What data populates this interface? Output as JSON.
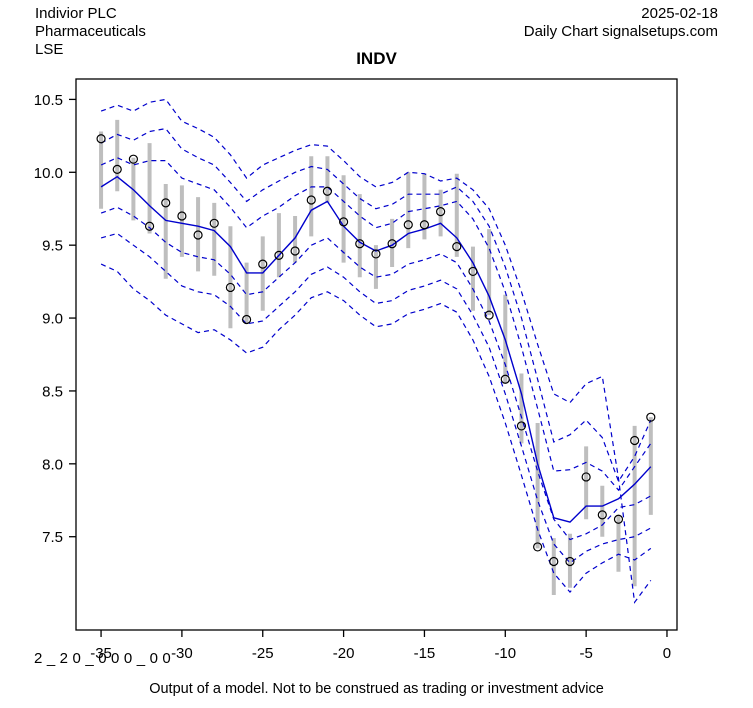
{
  "header": {
    "company": "Indivior PLC",
    "sector": "Pharmaceuticals",
    "exchange": "LSE",
    "date": "2025-02-18",
    "source": "Daily Chart signalsetups.com"
  },
  "title": "INDV",
  "footer": {
    "code": "2_20_000_00",
    "disclaimer": "Output of a model. Not to be construed as trading or investment advice"
  },
  "chart_data": {
    "type": "line",
    "title": "INDV",
    "xlabel": "",
    "ylabel": "",
    "x": [
      -35,
      -34,
      -33,
      -32,
      -31,
      -30,
      -29,
      -28,
      -27,
      -26,
      -25,
      -24,
      -23,
      -22,
      -21,
      -20,
      -19,
      -18,
      -17,
      -16,
      -15,
      -14,
      -13,
      -12,
      -11,
      -10,
      -9,
      -8,
      -7,
      -6,
      -5,
      -4,
      -3,
      -2,
      -1
    ],
    "x_ticks": [
      -35,
      -30,
      -25,
      -20,
      -15,
      -10,
      -5,
      0
    ],
    "y_ticks": [
      7.5,
      8.0,
      8.5,
      9.0,
      9.5,
      10.0,
      10.5
    ],
    "xlim": [
      -36.55,
      0.62
    ],
    "ylim": [
      6.86,
      10.64
    ],
    "grid": false,
    "legend": "none",
    "series": [
      {
        "name": "upper-band-outer",
        "style": "dashed",
        "values": [
          10.42,
          10.46,
          10.42,
          10.48,
          10.5,
          10.35,
          10.3,
          10.24,
          10.12,
          9.96,
          10.05,
          10.1,
          10.15,
          10.19,
          10.18,
          10.08,
          9.97,
          9.9,
          9.93,
          10.0,
          9.99,
          9.94,
          9.96,
          9.88,
          9.75,
          9.5,
          9.18,
          8.82,
          8.48,
          8.42,
          8.55,
          8.6,
          7.9,
          7.05,
          7.2
        ]
      },
      {
        "name": "upper-band-mid",
        "style": "dashed",
        "values": [
          10.2,
          10.26,
          10.22,
          10.28,
          10.3,
          10.16,
          10.1,
          10.05,
          9.93,
          9.8,
          9.88,
          9.94,
          10.0,
          10.04,
          10.02,
          9.92,
          9.82,
          9.75,
          9.78,
          9.85,
          9.85,
          9.85,
          9.9,
          9.8,
          9.63,
          9.35,
          9.0,
          8.58,
          8.15,
          8.2,
          8.3,
          8.18,
          7.88,
          8.05,
          8.3
        ]
      },
      {
        "name": "upper-band-inner",
        "style": "dashed",
        "values": [
          10.05,
          10.1,
          10.05,
          10.08,
          10.08,
          9.96,
          9.92,
          9.88,
          9.76,
          9.62,
          9.7,
          9.76,
          9.84,
          9.9,
          9.9,
          9.8,
          9.7,
          9.62,
          9.65,
          9.73,
          9.75,
          9.77,
          9.8,
          9.68,
          9.48,
          9.18,
          8.8,
          8.38,
          7.95,
          7.96,
          8.01,
          7.95,
          7.82,
          7.98,
          8.14
        ]
      },
      {
        "name": "model-median",
        "style": "solid",
        "values": [
          9.9,
          9.97,
          9.88,
          9.77,
          9.67,
          9.65,
          9.63,
          9.6,
          9.49,
          9.31,
          9.31,
          9.43,
          9.55,
          9.74,
          9.8,
          9.63,
          9.52,
          9.46,
          9.5,
          9.58,
          9.61,
          9.65,
          9.55,
          9.38,
          9.15,
          8.85,
          8.48,
          8.0,
          7.63,
          7.6,
          7.71,
          7.71,
          7.76,
          7.86,
          7.98
        ]
      },
      {
        "name": "lower-band-inner",
        "style": "dashed",
        "values": [
          9.72,
          9.76,
          9.7,
          9.62,
          9.52,
          9.45,
          9.42,
          9.4,
          9.3,
          9.16,
          9.18,
          9.28,
          9.38,
          9.5,
          9.55,
          9.45,
          9.35,
          9.28,
          9.3,
          9.37,
          9.4,
          9.44,
          9.38,
          9.2,
          8.98,
          8.68,
          8.32,
          7.95,
          7.62,
          7.48,
          7.52,
          7.58,
          7.7,
          7.72,
          7.78
        ]
      },
      {
        "name": "lower-band-mid",
        "style": "dashed",
        "values": [
          9.55,
          9.58,
          9.5,
          9.42,
          9.32,
          9.22,
          9.18,
          9.16,
          9.08,
          8.96,
          8.98,
          9.08,
          9.18,
          9.3,
          9.35,
          9.28,
          9.18,
          9.1,
          9.12,
          9.19,
          9.22,
          9.26,
          9.2,
          9.02,
          8.8,
          8.48,
          8.12,
          7.75,
          7.45,
          7.32,
          7.4,
          7.45,
          7.48,
          7.5,
          7.56
        ]
      },
      {
        "name": "lower-band-outer",
        "style": "dashed",
        "values": [
          9.37,
          9.32,
          9.2,
          9.12,
          9.02,
          8.96,
          8.9,
          8.92,
          8.85,
          8.76,
          8.8,
          8.92,
          9.02,
          9.14,
          9.18,
          9.12,
          9.02,
          8.94,
          8.96,
          9.03,
          9.06,
          9.1,
          9.04,
          8.85,
          8.6,
          8.28,
          7.92,
          7.55,
          7.25,
          7.12,
          7.25,
          7.32,
          7.38,
          7.34,
          7.42
        ]
      }
    ],
    "price_bars": {
      "high": [
        10.28,
        10.36,
        10.1,
        10.2,
        9.92,
        9.91,
        9.83,
        9.79,
        9.63,
        9.38,
        9.56,
        9.72,
        9.7,
        10.11,
        10.11,
        9.98,
        9.85,
        9.5,
        9.68,
        10.0,
        9.99,
        9.88,
        9.99,
        9.49,
        9.61,
        9.16,
        8.62,
        8.28,
        7.49,
        7.52,
        8.12,
        7.85,
        7.65,
        8.26,
        8.32
      ],
      "low": [
        9.75,
        9.87,
        9.67,
        9.58,
        9.27,
        9.42,
        9.32,
        9.29,
        8.93,
        8.96,
        9.05,
        9.28,
        9.38,
        9.56,
        9.79,
        9.38,
        9.28,
        9.2,
        9.35,
        9.48,
        9.54,
        9.56,
        9.42,
        9.05,
        9.02,
        8.55,
        8.14,
        7.42,
        7.1,
        7.15,
        7.62,
        7.5,
        7.26,
        7.16,
        7.65
      ],
      "close": [
        10.23,
        10.02,
        10.09,
        9.63,
        9.79,
        9.7,
        9.57,
        9.65,
        9.21,
        8.99,
        9.37,
        9.43,
        9.46,
        9.81,
        9.87,
        9.66,
        9.51,
        9.44,
        9.51,
        9.64,
        9.64,
        9.73,
        9.49,
        9.32,
        9.02,
        8.58,
        8.26,
        7.43,
        7.33,
        7.33,
        7.91,
        7.65,
        7.62,
        8.16,
        8.32
      ]
    },
    "colors": {
      "line": "#0000CC",
      "bar": "#BEBEBE",
      "marker": "#000000",
      "axis": "#000000",
      "background": "#FFFFFF"
    }
  }
}
